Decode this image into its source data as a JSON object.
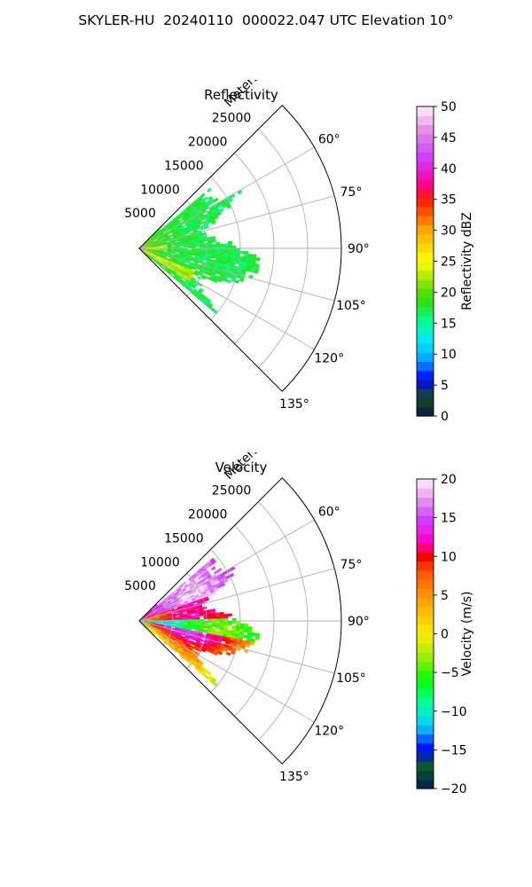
{
  "figure_title": "SKYLER-HU  20240110  000022.047 UTC Elevation 10°",
  "chart_data": [
    {
      "type": "heatmap",
      "title": "Reflectivity",
      "radial_axis_label": "Meters",
      "radial_ticks": [
        5000,
        10000,
        15000,
        20000,
        25000
      ],
      "radial_tick_labels": [
        "5000",
        "10000",
        "15000",
        "20000",
        "25000"
      ],
      "radial_max": 30000,
      "data_max_range": 18000,
      "azimuth_range_deg": [
        45,
        135
      ],
      "azimuth_ticks_deg": [
        60,
        75,
        90,
        105,
        120,
        135
      ],
      "azimuth_tick_labels": [
        "60°",
        "75°",
        "90°",
        "105°",
        "120°",
        "135°"
      ],
      "colorbar": {
        "label": "Reflectivity dBZ",
        "range": [
          0,
          50
        ],
        "ticks": [
          0,
          5,
          10,
          15,
          20,
          25,
          30,
          35,
          40,
          45,
          50
        ],
        "tick_labels": [
          "0",
          "5",
          "10",
          "15",
          "20",
          "25",
          "30",
          "35",
          "40",
          "45",
          "50"
        ],
        "stops": [
          {
            "v": 0,
            "c": "#001a4d"
          },
          {
            "v": 3,
            "c": "#1a4d1a"
          },
          {
            "v": 6,
            "c": "#0000ff"
          },
          {
            "v": 9,
            "c": "#00a0ff"
          },
          {
            "v": 12,
            "c": "#00e5ff"
          },
          {
            "v": 15,
            "c": "#00ffa0"
          },
          {
            "v": 19,
            "c": "#33dd00"
          },
          {
            "v": 22,
            "c": "#99e600"
          },
          {
            "v": 25,
            "c": "#ffff00"
          },
          {
            "v": 30,
            "c": "#ffaa00"
          },
          {
            "v": 35,
            "c": "#ff1a00"
          },
          {
            "v": 38,
            "c": "#ff00aa"
          },
          {
            "v": 42,
            "c": "#cc44ff"
          },
          {
            "v": 46,
            "c": "#e08ae0"
          },
          {
            "v": 50,
            "c": "#fff0ff"
          }
        ]
      }
    },
    {
      "type": "heatmap",
      "title": "Velocity",
      "radial_axis_label": "Meters",
      "radial_ticks": [
        5000,
        10000,
        15000,
        20000,
        25000
      ],
      "radial_tick_labels": [
        "5000",
        "10000",
        "15000",
        "20000",
        "25000"
      ],
      "radial_max": 30000,
      "data_max_range": 18000,
      "azimuth_range_deg": [
        45,
        135
      ],
      "azimuth_ticks_deg": [
        60,
        75,
        90,
        105,
        120,
        135
      ],
      "azimuth_tick_labels": [
        "60°",
        "75°",
        "90°",
        "105°",
        "120°",
        "135°"
      ],
      "colorbar": {
        "label": "Velocity (m/s)",
        "range": [
          -20,
          20
        ],
        "ticks": [
          -20,
          -15,
          -10,
          -5,
          0,
          5,
          10,
          15,
          20
        ],
        "tick_labels": [
          "−20",
          "−15",
          "−10",
          "−5",
          "0",
          "5",
          "10",
          "15",
          "20"
        ],
        "stops": [
          {
            "v": -20,
            "c": "#001a4d"
          },
          {
            "v": -17,
            "c": "#0a5c2a"
          },
          {
            "v": -15,
            "c": "#0000ff"
          },
          {
            "v": -12,
            "c": "#00ccff"
          },
          {
            "v": -9,
            "c": "#00ffa0"
          },
          {
            "v": -6,
            "c": "#00ff00"
          },
          {
            "v": -3,
            "c": "#99ee00"
          },
          {
            "v": 0,
            "c": "#ffee00"
          },
          {
            "v": 4,
            "c": "#ffaa00"
          },
          {
            "v": 8,
            "c": "#ff5500"
          },
          {
            "v": 10,
            "c": "#ff0000"
          },
          {
            "v": 12,
            "c": "#ff00cc"
          },
          {
            "v": 15,
            "c": "#cc44ff"
          },
          {
            "v": 18,
            "c": "#eeaaee"
          },
          {
            "v": 20,
            "c": "#fff0ff"
          }
        ]
      }
    }
  ]
}
